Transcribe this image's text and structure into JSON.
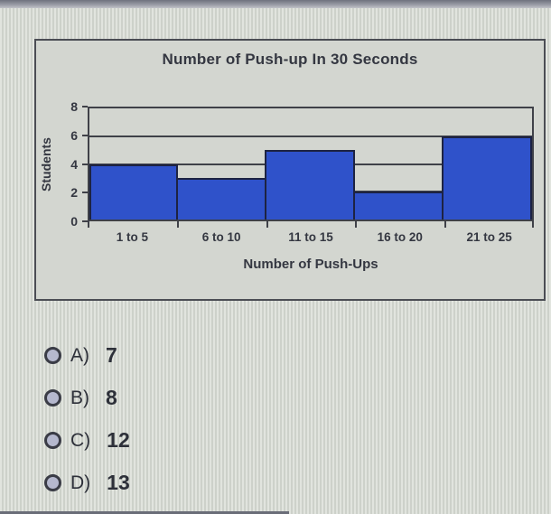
{
  "chart_data": {
    "type": "bar",
    "title": "Number of Push-up In 30 Seconds",
    "xlabel": "Number of Push-Ups",
    "ylabel": "Students",
    "categories": [
      "1 to 5",
      "6 to 10",
      "11 to 15",
      "16 to 20",
      "21 to 25"
    ],
    "values": [
      4,
      3,
      5,
      2,
      6
    ],
    "ylim": [
      0,
      8
    ],
    "y_ticks": [
      8,
      6,
      4,
      2,
      0
    ],
    "y_tick_step": 2,
    "grid": true,
    "legend": false,
    "bar_color": "#2f52ca",
    "axis_color": "#3f4148"
  },
  "options": [
    {
      "letter": "A)",
      "value": "7"
    },
    {
      "letter": "B)",
      "value": "8"
    },
    {
      "letter": "C)",
      "value": "12"
    },
    {
      "letter": "D)",
      "value": "13"
    }
  ]
}
